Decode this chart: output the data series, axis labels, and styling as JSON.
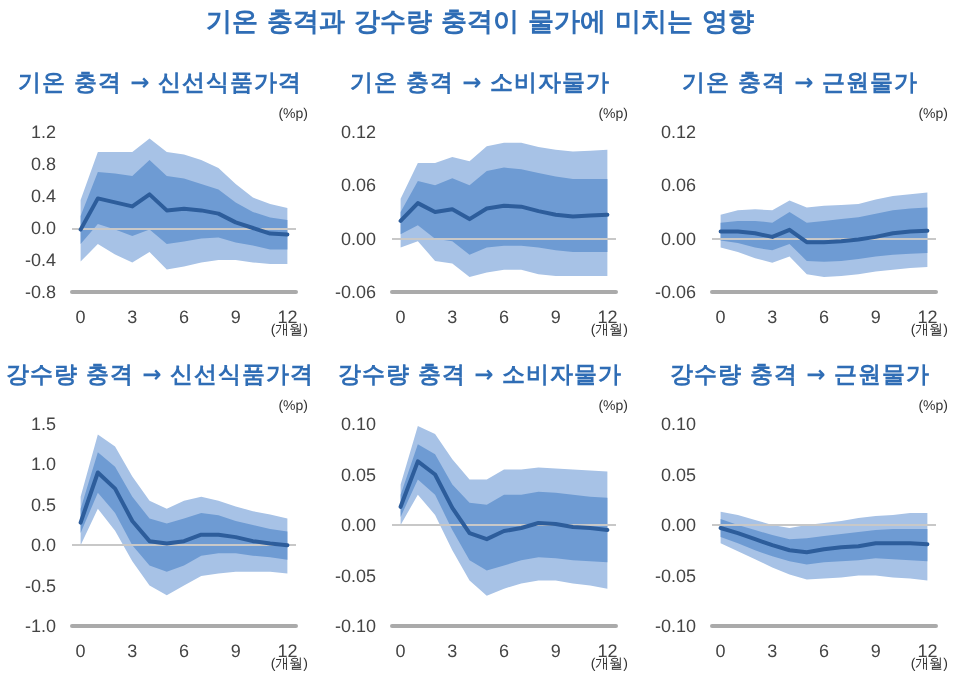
{
  "chart_data": [
    {
      "type": "line",
      "title": "기온 충격과 강수량 충격이 물가에 미치는 영향",
      "subtitle": "기온 충격 → 신선식품가격",
      "xlabel": "(개월)",
      "ylabel": "(%p)",
      "x": [
        0,
        1,
        2,
        3,
        4,
        5,
        6,
        7,
        8,
        9,
        10,
        11,
        12
      ],
      "xlim": [
        -0.5,
        12.5
      ],
      "xticks": [
        0,
        3,
        6,
        9,
        12
      ],
      "ylim": [
        -0.8,
        1.2
      ],
      "yticks": [
        -0.8,
        -0.4,
        {
          "value": 0,
          "label": "0.0"
        },
        0.4,
        0.8,
        1.2
      ],
      "grid": false,
      "marker": "none",
      "ref_lines": [
        {
          "axis": "y",
          "value": 0,
          "color": "#c8c8c8"
        }
      ],
      "series": [
        {
          "color": "#a7c2e6",
          "values": [
            null,
            null,
            null,
            null,
            null,
            null,
            null,
            null,
            null,
            null,
            null,
            null,
            null
          ],
          "lower": [
            -0.42,
            -0.2,
            -0.33,
            -0.43,
            -0.3,
            -0.52,
            -0.48,
            -0.43,
            -0.4,
            -0.4,
            -0.43,
            -0.45,
            -0.45
          ],
          "upper": [
            0.35,
            0.95,
            0.95,
            0.95,
            1.12,
            0.95,
            0.92,
            0.85,
            0.75,
            0.55,
            0.38,
            0.3,
            0.25
          ]
        },
        {
          "color": "#6e9bd3",
          "values": [
            null,
            null,
            null,
            null,
            null,
            null,
            null,
            null,
            null,
            null,
            null,
            null,
            null
          ],
          "lower": [
            -0.2,
            0.05,
            -0.02,
            -0.1,
            -0.02,
            -0.2,
            -0.17,
            -0.13,
            -0.12,
            -0.18,
            -0.22,
            -0.27,
            -0.27
          ],
          "upper": [
            0.15,
            0.7,
            0.68,
            0.65,
            0.85,
            0.65,
            0.62,
            0.55,
            0.48,
            0.32,
            0.2,
            0.13,
            0.1
          ]
        },
        {
          "color": "#2d5d9b",
          "values": [
            -0.02,
            0.37,
            0.32,
            0.27,
            0.42,
            0.22,
            0.24,
            0.22,
            0.18,
            0.07,
            0.0,
            -0.07,
            -0.08
          ]
        }
      ]
    },
    {
      "type": "line",
      "title": "기온 충격 → 소비자물가",
      "xlabel": "(개월)",
      "ylabel": "(%p)",
      "x": [
        0,
        1,
        2,
        3,
        4,
        5,
        6,
        7,
        8,
        9,
        10,
        11,
        12
      ],
      "xlim": [
        -0.5,
        12.5
      ],
      "xticks": [
        0,
        3,
        6,
        9,
        12
      ],
      "ylim": [
        -0.06,
        0.12
      ],
      "yticks": [
        -0.06,
        {
          "value": 0,
          "label": "0.00"
        },
        0.06,
        0.12
      ],
      "grid": false,
      "marker": "none",
      "ref_lines": [
        {
          "axis": "y",
          "value": 0,
          "color": "#c8c8c8"
        }
      ],
      "series": [
        {
          "color": "#a7c2e6",
          "values": [
            null,
            null,
            null,
            null,
            null,
            null,
            null,
            null,
            null,
            null,
            null,
            null,
            null
          ],
          "lower": [
            -0.01,
            -0.003,
            -0.025,
            -0.028,
            -0.043,
            -0.038,
            -0.035,
            -0.035,
            -0.04,
            -0.042,
            -0.042,
            -0.042,
            -0.042
          ],
          "upper": [
            0.045,
            0.085,
            0.085,
            0.092,
            0.087,
            0.104,
            0.108,
            0.108,
            0.103,
            0.1,
            0.098,
            0.099,
            0.1
          ]
        },
        {
          "color": "#6e9bd3",
          "values": [
            null,
            null,
            null,
            null,
            null,
            null,
            null,
            null,
            null,
            null,
            null,
            null,
            null
          ],
          "lower": [
            0.005,
            0.015,
            0.0,
            -0.003,
            -0.018,
            -0.01,
            -0.008,
            -0.008,
            -0.01,
            -0.013,
            -0.015,
            -0.015,
            -0.015
          ],
          "upper": [
            0.03,
            0.065,
            0.06,
            0.068,
            0.06,
            0.076,
            0.08,
            0.078,
            0.074,
            0.07,
            0.067,
            0.067,
            0.067
          ]
        },
        {
          "color": "#2d5d9b",
          "values": [
            0.02,
            0.04,
            0.03,
            0.033,
            0.022,
            0.034,
            0.037,
            0.036,
            0.031,
            0.027,
            0.025,
            0.026,
            0.027
          ]
        }
      ]
    },
    {
      "type": "line",
      "title": "기온 충격 → 근원물가",
      "xlabel": "(개월)",
      "ylabel": "(%p)",
      "x": [
        0,
        1,
        2,
        3,
        4,
        5,
        6,
        7,
        8,
        9,
        10,
        11,
        12
      ],
      "xlim": [
        -0.5,
        12.5
      ],
      "xticks": [
        0,
        3,
        6,
        9,
        12
      ],
      "ylim": [
        -0.06,
        0.12
      ],
      "yticks": [
        -0.06,
        {
          "value": 0,
          "label": "0.00"
        },
        0.06,
        0.12
      ],
      "grid": false,
      "marker": "none",
      "ref_lines": [
        {
          "axis": "y",
          "value": 0,
          "color": "#c8c8c8"
        }
      ],
      "series": [
        {
          "color": "#a7c2e6",
          "values": [
            null,
            null,
            null,
            null,
            null,
            null,
            null,
            null,
            null,
            null,
            null,
            null,
            null
          ],
          "lower": [
            -0.01,
            -0.015,
            -0.022,
            -0.027,
            -0.02,
            -0.04,
            -0.043,
            -0.042,
            -0.04,
            -0.037,
            -0.035,
            -0.033,
            -0.032
          ],
          "upper": [
            0.027,
            0.032,
            0.033,
            0.032,
            0.043,
            0.035,
            0.037,
            0.038,
            0.039,
            0.044,
            0.048,
            0.05,
            0.052
          ]
        },
        {
          "color": "#6e9bd3",
          "values": [
            null,
            null,
            null,
            null,
            null,
            null,
            null,
            null,
            null,
            null,
            null,
            null,
            null
          ],
          "lower": [
            -0.002,
            -0.005,
            -0.01,
            -0.013,
            -0.006,
            -0.025,
            -0.026,
            -0.025,
            -0.023,
            -0.02,
            -0.018,
            -0.017,
            -0.016
          ],
          "upper": [
            0.018,
            0.02,
            0.02,
            0.018,
            0.03,
            0.018,
            0.02,
            0.022,
            0.024,
            0.028,
            0.032,
            0.034,
            0.035
          ]
        },
        {
          "color": "#2d5d9b",
          "values": [
            0.008,
            0.008,
            0.006,
            0.002,
            0.01,
            -0.004,
            -0.004,
            -0.003,
            -0.001,
            0.002,
            0.006,
            0.008,
            0.009
          ]
        }
      ]
    },
    {
      "type": "line",
      "title": "강수량 충격 → 신선식품가격",
      "xlabel": "(개월)",
      "ylabel": "(%p)",
      "x": [
        0,
        1,
        2,
        3,
        4,
        5,
        6,
        7,
        8,
        9,
        10,
        11,
        12
      ],
      "xlim": [
        -0.5,
        12.5
      ],
      "xticks": [
        0,
        3,
        6,
        9,
        12
      ],
      "ylim": [
        -1.0,
        1.5
      ],
      "yticks": [
        {
          "value": -1,
          "label": "-1.0"
        },
        -0.5,
        {
          "value": 0,
          "label": "0.0"
        },
        0.5,
        {
          "value": 1,
          "label": "1.0"
        },
        1.5
      ],
      "grid": false,
      "marker": "none",
      "ref_lines": [
        {
          "axis": "y",
          "value": 0,
          "color": "#c8c8c8"
        }
      ],
      "series": [
        {
          "color": "#a7c2e6",
          "values": [
            null,
            null,
            null,
            null,
            null,
            null,
            null,
            null,
            null,
            null,
            null,
            null,
            null
          ],
          "lower": [
            0.0,
            0.45,
            0.18,
            -0.2,
            -0.5,
            -0.62,
            -0.5,
            -0.38,
            -0.35,
            -0.33,
            -0.33,
            -0.33,
            -0.35
          ],
          "upper": [
            0.6,
            1.37,
            1.22,
            0.85,
            0.55,
            0.45,
            0.55,
            0.6,
            0.55,
            0.48,
            0.42,
            0.38,
            0.33
          ]
        },
        {
          "color": "#6e9bd3",
          "values": [
            null,
            null,
            null,
            null,
            null,
            null,
            null,
            null,
            null,
            null,
            null,
            null,
            null
          ],
          "lower": [
            0.15,
            0.65,
            0.4,
            0.0,
            -0.25,
            -0.33,
            -0.25,
            -0.13,
            -0.1,
            -0.1,
            -0.13,
            -0.15,
            -0.18
          ],
          "upper": [
            0.45,
            1.15,
            0.97,
            0.6,
            0.33,
            0.27,
            0.33,
            0.4,
            0.37,
            0.3,
            0.25,
            0.2,
            0.17
          ]
        },
        {
          "color": "#2d5d9b",
          "values": [
            0.28,
            0.9,
            0.7,
            0.3,
            0.05,
            0.02,
            0.05,
            0.13,
            0.13,
            0.1,
            0.05,
            0.02,
            0.0
          ]
        }
      ]
    },
    {
      "type": "line",
      "title": "강수량 충격 → 소비자물가",
      "xlabel": "(개월)",
      "ylabel": "(%p)",
      "x": [
        0,
        1,
        2,
        3,
        4,
        5,
        6,
        7,
        8,
        9,
        10,
        11,
        12
      ],
      "xlim": [
        -0.5,
        12.5
      ],
      "xticks": [
        0,
        3,
        6,
        9,
        12
      ],
      "ylim": [
        -0.1,
        0.1
      ],
      "yticks": [
        {
          "value": -0.1,
          "label": "-0.10"
        },
        -0.05,
        {
          "value": 0,
          "label": "0.00"
        },
        0.05,
        {
          "value": 0.1,
          "label": "0.10"
        }
      ],
      "grid": false,
      "marker": "none",
      "ref_lines": [
        {
          "axis": "y",
          "value": 0,
          "color": "#c8c8c8"
        }
      ],
      "series": [
        {
          "color": "#a7c2e6",
          "values": [
            null,
            null,
            null,
            null,
            null,
            null,
            null,
            null,
            null,
            null,
            null,
            null,
            null
          ],
          "lower": [
            0.0,
            0.03,
            0.01,
            -0.025,
            -0.055,
            -0.07,
            -0.063,
            -0.058,
            -0.055,
            -0.055,
            -0.058,
            -0.06,
            -0.063
          ],
          "upper": [
            0.04,
            0.098,
            0.09,
            0.065,
            0.045,
            0.045,
            0.055,
            0.055,
            0.057,
            0.056,
            0.055,
            0.054,
            0.053
          ]
        },
        {
          "color": "#6e9bd3",
          "values": [
            null,
            null,
            null,
            null,
            null,
            null,
            null,
            null,
            null,
            null,
            null,
            null,
            null
          ],
          "lower": [
            0.008,
            0.045,
            0.03,
            -0.005,
            -0.035,
            -0.045,
            -0.04,
            -0.035,
            -0.032,
            -0.033,
            -0.035,
            -0.036,
            -0.037
          ],
          "upper": [
            0.03,
            0.08,
            0.07,
            0.04,
            0.022,
            0.02,
            0.03,
            0.03,
            0.033,
            0.032,
            0.03,
            0.028,
            0.027
          ]
        },
        {
          "color": "#2d5d9b",
          "values": [
            0.018,
            0.063,
            0.05,
            0.017,
            -0.008,
            -0.014,
            -0.006,
            -0.003,
            0.002,
            0.001,
            -0.002,
            -0.003,
            -0.005
          ]
        }
      ]
    },
    {
      "type": "line",
      "title": "강수량 충격 → 근원물가",
      "xlabel": "(개월)",
      "ylabel": "(%p)",
      "x": [
        0,
        1,
        2,
        3,
        4,
        5,
        6,
        7,
        8,
        9,
        10,
        11,
        12
      ],
      "xlim": [
        -0.5,
        12.5
      ],
      "xticks": [
        0,
        3,
        6,
        9,
        12
      ],
      "ylim": [
        -0.1,
        0.1
      ],
      "yticks": [
        {
          "value": -0.1,
          "label": "-0.10"
        },
        -0.05,
        {
          "value": 0,
          "label": "0.00"
        },
        0.05,
        {
          "value": 0.1,
          "label": "0.10"
        }
      ],
      "grid": false,
      "marker": "none",
      "ref_lines": [
        {
          "axis": "y",
          "value": 0,
          "color": "#c8c8c8"
        }
      ],
      "series": [
        {
          "color": "#a7c2e6",
          "values": [
            null,
            null,
            null,
            null,
            null,
            null,
            null,
            null,
            null,
            null,
            null,
            null,
            null
          ],
          "lower": [
            -0.018,
            -0.026,
            -0.034,
            -0.042,
            -0.049,
            -0.054,
            -0.053,
            -0.052,
            -0.05,
            -0.05,
            -0.052,
            -0.053,
            -0.055
          ],
          "upper": [
            0.013,
            0.01,
            0.005,
            0.0,
            -0.003,
            0.0,
            0.002,
            0.004,
            0.007,
            0.009,
            0.01,
            0.012,
            0.012
          ]
        },
        {
          "color": "#6e9bd3",
          "values": [
            null,
            null,
            null,
            null,
            null,
            null,
            null,
            null,
            null,
            null,
            null,
            null,
            null
          ],
          "lower": [
            -0.012,
            -0.018,
            -0.025,
            -0.031,
            -0.036,
            -0.039,
            -0.037,
            -0.036,
            -0.035,
            -0.033,
            -0.034,
            -0.035,
            -0.036
          ],
          "upper": [
            0.006,
            0.0,
            -0.005,
            -0.01,
            -0.014,
            -0.013,
            -0.011,
            -0.009,
            -0.007,
            -0.005,
            -0.004,
            -0.004,
            -0.004
          ]
        },
        {
          "color": "#2d5d9b",
          "values": [
            -0.003,
            -0.008,
            -0.014,
            -0.02,
            -0.025,
            -0.027,
            -0.024,
            -0.022,
            -0.021,
            -0.018,
            -0.018,
            -0.018,
            -0.019
          ]
        }
      ]
    }
  ]
}
